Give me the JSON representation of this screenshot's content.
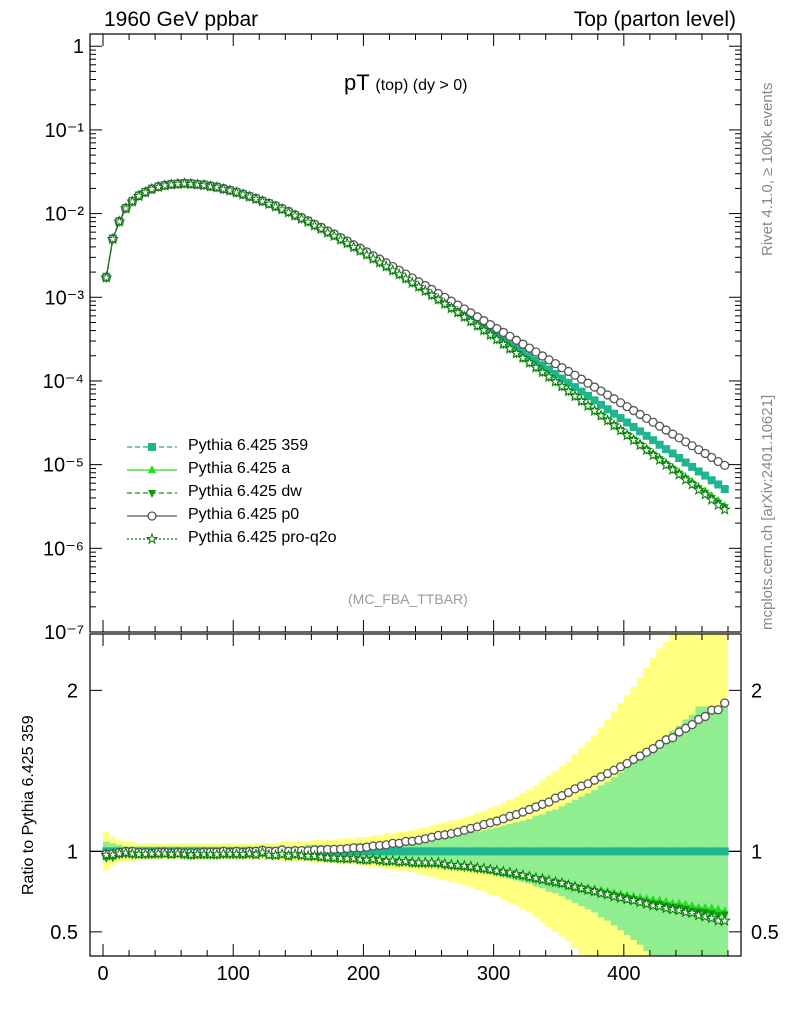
{
  "header": {
    "left": "1960 GeV ppbar",
    "right": "Top (parton level)"
  },
  "side_labels": {
    "rivet": "Rivet 4.1.0, ≥ 100k events",
    "mcplots": "mcplots.cern.ch [arXiv:2401.10621]"
  },
  "analysis_label": "(MC_FBA_TTBAR)",
  "colors": {
    "p359": "#1fb58f",
    "a": "#22dd22",
    "dw": "#119911",
    "p0": "#555555",
    "proq2o": "#0a7a0a",
    "band_yellow": "#ffff80",
    "band_green": "#90ee90"
  },
  "chart_data": [
    {
      "type": "line",
      "title": "pT",
      "title_sub": "(top) (dy > 0)",
      "yscale": "log",
      "xlim": [
        -10,
        490
      ],
      "ylim": [
        1e-07,
        1.4
      ],
      "ytick_labels": [
        {
          "v": 1,
          "t": "1"
        },
        {
          "v": 0.1,
          "t": "10⁻¹"
        },
        {
          "v": 0.01,
          "t": "10⁻²"
        },
        {
          "v": 0.001,
          "t": "10⁻³"
        },
        {
          "v": 0.0001,
          "t": "10⁻⁴"
        },
        {
          "v": 1e-05,
          "t": "10⁻⁵"
        },
        {
          "v": 1e-06,
          "t": "10⁻⁶"
        },
        {
          "v": 1e-07,
          "t": "10⁻⁷"
        }
      ],
      "x": [
        2.5,
        7.5,
        12.5,
        17.5,
        22.5,
        27.5,
        32.5,
        37.5,
        42.5,
        47.5,
        52.5,
        57.5,
        62.5,
        67.5,
        72.5,
        77.5,
        82.5,
        87.5,
        92.5,
        97.5,
        102.5,
        107.5,
        112.5,
        117.5,
        122.5,
        127.5,
        132.5,
        137.5,
        142.5,
        147.5,
        152.5,
        157.5,
        162.5,
        167.5,
        172.5,
        177.5,
        182.5,
        187.5,
        192.5,
        197.5,
        202.5,
        207.5,
        212.5,
        217.5,
        222.5,
        227.5,
        232.5,
        237.5,
        242.5,
        247.5,
        252.5,
        257.5,
        262.5,
        267.5,
        272.5,
        277.5,
        282.5,
        287.5,
        292.5,
        297.5,
        302.5,
        307.5,
        312.5,
        317.5,
        322.5,
        327.5,
        332.5,
        337.5,
        342.5,
        347.5,
        352.5,
        357.5,
        362.5,
        367.5,
        372.5,
        377.5,
        382.5,
        387.5,
        392.5,
        397.5,
        402.5,
        407.5,
        412.5,
        417.5,
        422.5,
        427.5,
        432.5,
        437.5,
        442.5,
        447.5,
        452.5,
        457.5,
        462.5,
        467.5,
        472.5,
        477.5
      ],
      "series": [
        {
          "name": "Pythia 6.425 359",
          "key": "p359",
          "dash": "5,3",
          "marker": "square",
          "values": [
            0.00176,
            0.00506,
            0.00812,
            0.0116,
            0.0141,
            0.0165,
            0.0182,
            0.0199,
            0.0211,
            0.0219,
            0.0226,
            0.0228,
            0.0232,
            0.023,
            0.0226,
            0.0222,
            0.0215,
            0.0209,
            0.0199,
            0.0191,
            0.0181,
            0.0172,
            0.0161,
            0.0152,
            0.0141,
            0.0133,
            0.0124,
            0.0114,
            0.0106,
            0.0096,
            0.00889,
            0.00819,
            0.00739,
            0.00679,
            0.00615,
            0.00564,
            0.00509,
            0.00462,
            0.00415,
            0.00378,
            0.0034,
            0.00303,
            0.00275,
            0.00248,
            0.00222,
            0.002,
            0.00178,
            0.0016,
            0.00143,
            0.00128,
            0.00114,
            0.00101,
            0.000905,
            0.000809,
            0.00072,
            0.00064,
            0.000569,
            0.000507,
            0.00045,
            0.0004,
            0.000356,
            0.000316,
            0.00028,
            0.000249,
            0.000221,
            0.000196,
            0.000174,
            0.000154,
            0.000137,
            0.000121,
            0.000107,
            9.52e-05,
            8.43e-05,
            7.47e-05,
            6.62e-05,
            5.86e-05,
            5.19e-05,
            4.59e-05,
            4.07e-05,
            3.6e-05,
            3.19e-05,
            2.82e-05,
            2.5e-05,
            2.21e-05,
            1.96e-05,
            1.73e-05,
            1.53e-05,
            1.36e-05,
            1.2e-05,
            1.06e-05,
            9.4e-06,
            8.3e-06,
            7.4e-06,
            6.5e-06,
            5.8e-06,
            5.1e-06
          ]
        },
        {
          "name": "Pythia 6.425 a",
          "key": "a",
          "dash": "",
          "marker": "triangle-up",
          "values": [
            0.00171,
            0.00491,
            0.00803,
            0.0115,
            0.014,
            0.0163,
            0.018,
            0.0196,
            0.0209,
            0.0218,
            0.0222,
            0.0226,
            0.0228,
            0.0225,
            0.0222,
            0.0219,
            0.0211,
            0.0205,
            0.0197,
            0.0188,
            0.0179,
            0.0169,
            0.016,
            0.015,
            0.0141,
            0.0131,
            0.0121,
            0.0113,
            0.0104,
            0.00949,
            0.00871,
            0.00801,
            0.00718,
            0.00658,
            0.00593,
            0.00542,
            0.00491,
            0.00445,
            0.00401,
            0.00361,
            0.00325,
            0.00289,
            0.00262,
            0.00235,
            0.00209,
            0.00189,
            0.00168,
            0.0015,
            0.00134,
            0.00119,
            0.00106,
            0.000942,
            0.000834,
            0.000744,
            0.000659,
            0.000582,
            0.000515,
            0.000454,
            0.000403,
            0.000355,
            0.000313,
            0.000276,
            0.000242,
            0.000214,
            0.000188,
            0.000166,
            0.000145,
            0.000129,
            0.000112,
            9.8e-05,
            8.6e-05,
            7.55e-05,
            6.6e-05,
            5.78e-05,
            5.1e-05,
            4.48e-05,
            3.92e-05,
            3.44e-05,
            3.01e-05,
            2.64e-05,
            2.32e-05,
            2.03e-05,
            1.78e-05,
            1.56e-05,
            1.37e-05,
            1.2e-05,
            1.05e-05,
            9.2e-06,
            8.1e-06,
            7.1e-06,
            6.2e-06,
            5.4e-06,
            4.8e-06,
            4.2e-06,
            3.7e-06,
            3.2e-06
          ]
        },
        {
          "name": "Pythia 6.425 dw",
          "key": "dw",
          "dash": "5,3",
          "marker": "triangle-down",
          "values": [
            0.00169,
            0.00487,
            0.00795,
            0.0114,
            0.0138,
            0.0162,
            0.0178,
            0.0195,
            0.0207,
            0.0216,
            0.0222,
            0.0225,
            0.0227,
            0.0224,
            0.0221,
            0.0217,
            0.021,
            0.0204,
            0.0195,
            0.0187,
            0.0177,
            0.0168,
            0.0158,
            0.0149,
            0.0139,
            0.013,
            0.0121,
            0.0112,
            0.0103,
            0.0094,
            0.00866,
            0.00793,
            0.00716,
            0.00654,
            0.0059,
            0.0054,
            0.00486,
            0.00441,
            0.00396,
            0.00358,
            0.00321,
            0.00288,
            0.00258,
            0.00232,
            0.00208,
            0.00186,
            0.00166,
            0.00148,
            0.00132,
            0.00118,
            0.00105,
            0.000928,
            0.000825,
            0.000734,
            0.000651,
            0.000577,
            0.00051,
            0.000451,
            0.000399,
            0.000353,
            0.000311,
            0.000274,
            0.000241,
            0.000212,
            0.000187,
            0.000164,
            0.000144,
            0.000127,
            0.000111,
            9.77e-05,
            8.56e-05,
            7.5e-05,
            6.57e-05,
            5.75e-05,
            5.04e-05,
            4.41e-05,
            3.86e-05,
            3.38e-05,
            2.96e-05,
            2.59e-05,
            2.26e-05,
            1.98e-05,
            1.73e-05,
            1.51e-05,
            1.32e-05,
            1.16e-05,
            1.01e-05,
            8.9e-06,
            7.8e-06,
            6.8e-06,
            5.9e-06,
            5.2e-06,
            4.6e-06,
            4e-06,
            3.5e-06,
            3.1e-06
          ]
        },
        {
          "name": "Pythia 6.425 p0",
          "key": "p0",
          "dash": "",
          "marker": "circle-open",
          "values": [
            0.00173,
            0.00499,
            0.00807,
            0.0116,
            0.0141,
            0.0164,
            0.0181,
            0.0197,
            0.021,
            0.0218,
            0.0224,
            0.0227,
            0.023,
            0.0228,
            0.0224,
            0.0221,
            0.0214,
            0.0208,
            0.0199,
            0.019,
            0.0181,
            0.0171,
            0.0161,
            0.0152,
            0.0142,
            0.0133,
            0.0124,
            0.0115,
            0.0106,
            0.00964,
            0.00893,
            0.00822,
            0.00746,
            0.00685,
            0.00622,
            0.00571,
            0.00516,
            0.0047,
            0.00424,
            0.00386,
            0.00349,
            0.00313,
            0.00285,
            0.00258,
            0.00233,
            0.0021,
            0.00189,
            0.0017,
            0.00153,
            0.00138,
            0.00124,
            0.00111,
            0.000998,
            0.000898,
            0.000806,
            0.000724,
            0.00065,
            0.000584,
            0.000525,
            0.000471,
            0.000423,
            0.00038,
            0.000341,
            0.000306,
            0.000275,
            0.000247,
            0.000222,
            0.000199,
            0.000179,
            0.000161,
            0.000144,
            0.00013,
            0.000117,
            0.000105,
            9.4e-05,
            8.45e-05,
            7.59e-05,
            6.81e-05,
            6.12e-05,
            5.49e-05,
            4.93e-05,
            4.43e-05,
            3.98e-05,
            3.57e-05,
            3.21e-05,
            2.88e-05,
            2.59e-05,
            2.32e-05,
            2.09e-05,
            1.87e-05,
            1.68e-05,
            1.51e-05,
            1.36e-05,
            1.22e-05,
            1.09e-05,
            9.8e-06
          ]
        },
        {
          "name": "Pythia 6.425 pro-q2o",
          "key": "proq2o",
          "dash": "2,2",
          "marker": "star-open",
          "values": [
            0.00172,
            0.00495,
            0.00801,
            0.0115,
            0.0139,
            0.0162,
            0.0179,
            0.0196,
            0.0208,
            0.0216,
            0.0222,
            0.0225,
            0.0228,
            0.0225,
            0.0222,
            0.0218,
            0.0211,
            0.0205,
            0.0196,
            0.0188,
            0.0178,
            0.0169,
            0.0159,
            0.0149,
            0.014,
            0.013,
            0.0121,
            0.0112,
            0.0103,
            0.00943,
            0.00867,
            0.00795,
            0.00717,
            0.00656,
            0.00591,
            0.00541,
            0.00487,
            0.00441,
            0.00397,
            0.00359,
            0.00322,
            0.00288,
            0.0026,
            0.00233,
            0.00209,
            0.00187,
            0.00167,
            0.00149,
            0.00133,
            0.00119,
            0.00106,
            0.000939,
            0.000834,
            0.000741,
            0.000657,
            0.000582,
            0.000515,
            0.000455,
            0.000402,
            0.000355,
            0.000313,
            0.000276,
            0.000243,
            0.000214,
            0.000188,
            0.000165,
            0.000145,
            0.000127,
            0.000112,
            9.79e-05,
            8.58e-05,
            7.51e-05,
            6.57e-05,
            5.75e-05,
            5.03e-05,
            4.4e-05,
            3.84e-05,
            3.36e-05,
            2.93e-05,
            2.56e-05,
            2.24e-05,
            1.96e-05,
            1.71e-05,
            1.49e-05,
            1.3e-05,
            1.14e-05,
            9.9e-06,
            8.7e-06,
            7.6e-06,
            6.6e-06,
            5.8e-06,
            5e-06,
            4.4e-06,
            3.8e-06,
            3.3e-06,
            2.9e-06
          ]
        }
      ]
    },
    {
      "type": "line",
      "ylabel": "Ratio to Pythia 6.425 359",
      "xlim": [
        -10,
        490
      ],
      "ylim": [
        0.35,
        2.35
      ],
      "yticks": [
        0.5,
        1,
        2
      ],
      "ytick_labels": [
        "0.5",
        "1",
        "2"
      ],
      "xticks": [
        0,
        100,
        200,
        300,
        400
      ],
      "xtick_labels": [
        "0",
        "100",
        "200",
        "300",
        "400"
      ],
      "reference_band_yellow": [
        0.12,
        0.09,
        0.07,
        0.06,
        0.06,
        0.05,
        0.05,
        0.05,
        0.05,
        0.05,
        0.05,
        0.05,
        0.05,
        0.05,
        0.05,
        0.05,
        0.05,
        0.05,
        0.05,
        0.05,
        0.05,
        0.05,
        0.05,
        0.05,
        0.05,
        0.05,
        0.05,
        0.06,
        0.06,
        0.06,
        0.06,
        0.06,
        0.07,
        0.07,
        0.07,
        0.07,
        0.08,
        0.08,
        0.08,
        0.09,
        0.09,
        0.1,
        0.1,
        0.11,
        0.11,
        0.12,
        0.12,
        0.13,
        0.14,
        0.15,
        0.16,
        0.17,
        0.18,
        0.19,
        0.2,
        0.21,
        0.22,
        0.24,
        0.25,
        0.27,
        0.28,
        0.3,
        0.32,
        0.34,
        0.36,
        0.38,
        0.41,
        0.44,
        0.47,
        0.5,
        0.53,
        0.56,
        0.6,
        0.64,
        0.68,
        0.72,
        0.77,
        0.82,
        0.87,
        0.92,
        0.97,
        1.02,
        1.08,
        1.14,
        1.2,
        1.26,
        1.3,
        1.35,
        1.4,
        1.45,
        1.5,
        1.55,
        1.6,
        1.6,
        1.6,
        1.6
      ],
      "reference_band_green": [
        0.06,
        0.05,
        0.04,
        0.03,
        0.03,
        0.03,
        0.03,
        0.03,
        0.03,
        0.03,
        0.03,
        0.03,
        0.03,
        0.03,
        0.03,
        0.03,
        0.03,
        0.03,
        0.03,
        0.03,
        0.03,
        0.03,
        0.03,
        0.03,
        0.03,
        0.03,
        0.03,
        0.03,
        0.03,
        0.03,
        0.03,
        0.04,
        0.04,
        0.04,
        0.04,
        0.04,
        0.04,
        0.04,
        0.05,
        0.05,
        0.05,
        0.05,
        0.05,
        0.06,
        0.06,
        0.06,
        0.06,
        0.07,
        0.07,
        0.08,
        0.08,
        0.09,
        0.09,
        0.1,
        0.1,
        0.11,
        0.12,
        0.12,
        0.13,
        0.14,
        0.15,
        0.16,
        0.17,
        0.18,
        0.19,
        0.2,
        0.22,
        0.23,
        0.25,
        0.26,
        0.28,
        0.3,
        0.32,
        0.34,
        0.36,
        0.38,
        0.41,
        0.43,
        0.46,
        0.49,
        0.52,
        0.55,
        0.58,
        0.62,
        0.65,
        0.69,
        0.72,
        0.75,
        0.78,
        0.82,
        0.85,
        0.9,
        0.9,
        0.9,
        0.9,
        0.9
      ]
    }
  ]
}
